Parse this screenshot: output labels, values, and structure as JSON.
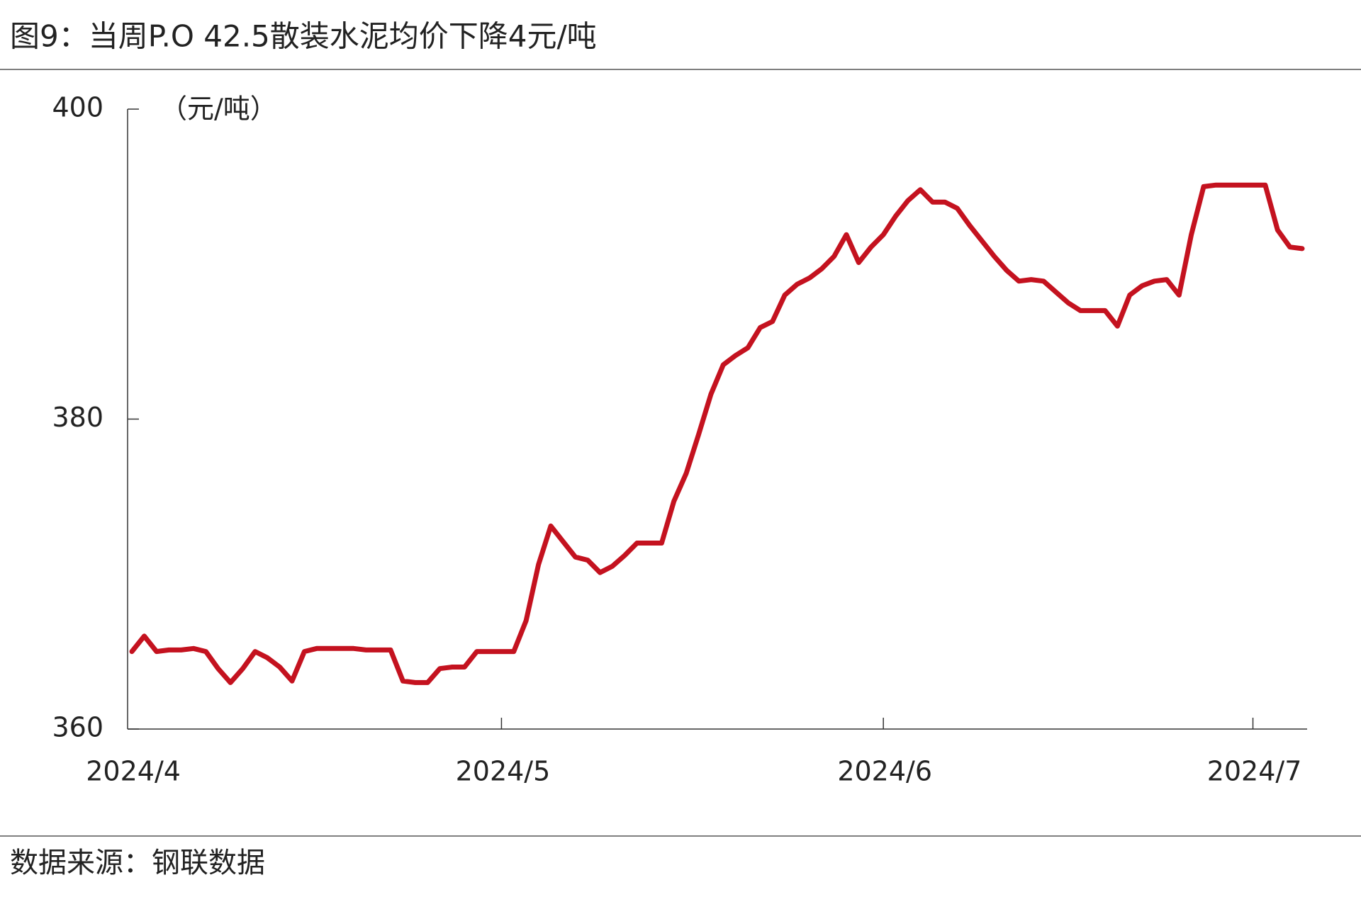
{
  "chart_data": {
    "type": "line",
    "title": "图9：当周P.O 42.5散装水泥均价下降4元/吨",
    "y_label": "（元/吨）",
    "source": "数据来源：钢联数据",
    "color": "#c4121f",
    "categories": [
      "2024/4",
      null,
      null,
      null,
      null,
      null,
      null,
      null,
      null,
      null,
      null,
      null,
      null,
      null,
      null,
      null,
      null,
      null,
      null,
      null,
      null,
      null,
      null,
      null,
      null,
      null,
      null,
      null,
      null,
      null,
      "2024/5",
      null,
      null,
      null,
      null,
      null,
      null,
      null,
      null,
      null,
      null,
      null,
      null,
      null,
      null,
      null,
      null,
      null,
      null,
      null,
      null,
      null,
      null,
      null,
      null,
      null,
      null,
      null,
      null,
      null,
      null,
      "2024/6",
      null,
      null,
      null,
      null,
      null,
      null,
      null,
      null,
      null,
      null,
      null,
      null,
      null,
      null,
      null,
      null,
      null,
      null,
      null,
      null,
      null,
      null,
      null,
      null,
      null,
      null,
      null,
      null,
      null,
      "2024/7",
      null,
      null,
      null,
      null
    ],
    "values": [
      365.0,
      366.0,
      365.0,
      365.1,
      365.1,
      365.2,
      365.0,
      363.9,
      363.0,
      363.9,
      365.0,
      364.6,
      364.0,
      363.1,
      365.0,
      365.2,
      365.2,
      365.2,
      365.2,
      365.1,
      365.1,
      365.1,
      363.1,
      363.0,
      363.0,
      363.9,
      364.0,
      364.0,
      365.0,
      365.0,
      365.0,
      365.0,
      367.0,
      370.6,
      373.1,
      372.1,
      371.1,
      370.9,
      370.1,
      370.5,
      371.2,
      372.0,
      372.0,
      372.0,
      374.7,
      376.5,
      379.0,
      381.6,
      383.5,
      384.1,
      384.6,
      385.9,
      386.3,
      388.0,
      388.7,
      389.1,
      389.7,
      390.5,
      391.9,
      390.1,
      391.1,
      391.9,
      393.1,
      394.1,
      394.8,
      394.0,
      394.0,
      393.6,
      392.5,
      391.5,
      390.5,
      389.6,
      388.9,
      389.0,
      388.9,
      388.2,
      387.5,
      387.0,
      387.0,
      387.0,
      386.0,
      388.0,
      388.6,
      388.9,
      389.0,
      388.0,
      391.9,
      395.0,
      395.1,
      395.1,
      395.1,
      395.1,
      395.1,
      392.2,
      391.1,
      391.0
    ],
    "ylim": [
      360,
      400
    ],
    "yticks": [
      360,
      380,
      400
    ]
  }
}
